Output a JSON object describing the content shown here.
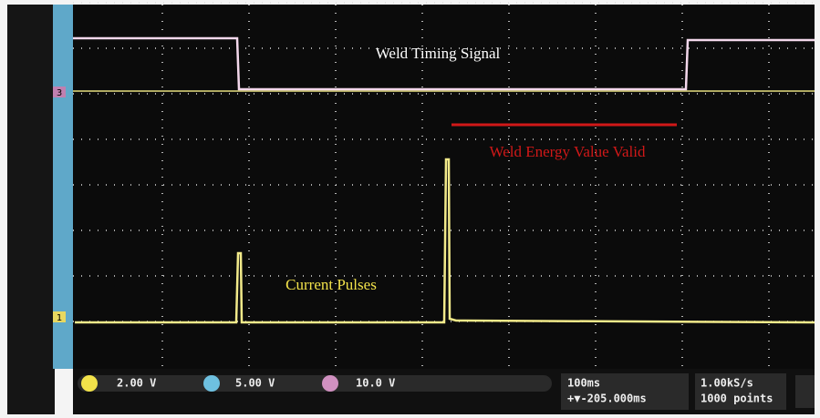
{
  "screen": {
    "annotations": {
      "timing": "Weld Timing Signal",
      "energy": "Weld Energy Value Valid",
      "pulses": "Current Pulses"
    },
    "markers": {
      "ch3": "3",
      "ch1": "1"
    },
    "status": {
      "ch1_scale": "2.00 V",
      "ch2_scale": "5.00 V",
      "ch3_scale": "10.0 V",
      "timebase": "100ms",
      "position": "+▼-205.000ms",
      "rate": "1.00kS/s",
      "points": "1000 points"
    }
  }
}
